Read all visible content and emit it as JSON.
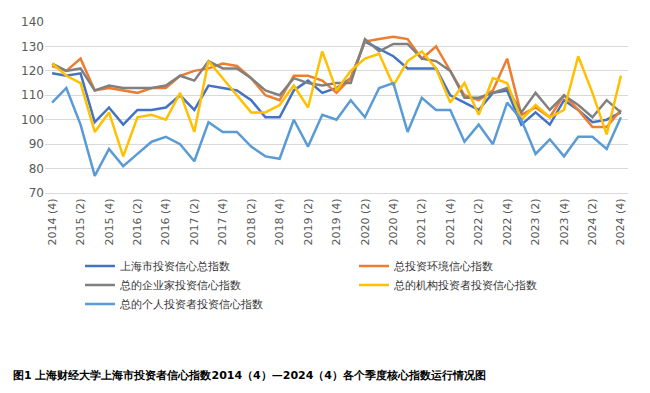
{
  "chart_data": {
    "type": "line",
    "title": "图1 上海财经大学上海市投资者信心指数2014（4）—2024（4）各个季度核心指数运行情况图",
    "categories": [
      "2014 (4)",
      null,
      "2015 (2)",
      null,
      "2015 (4)",
      null,
      "2016 (2)",
      null,
      "2016 (4)",
      null,
      "2017 (2)",
      null,
      "2017 (4)",
      null,
      "2018 (2)",
      null,
      "2018 (4)",
      null,
      "2019 (2)",
      null,
      "2019 (4)",
      null,
      "2020 (2)",
      null,
      "2020 (4)",
      null,
      "2021 (2)",
      null,
      "2021 (4)",
      null,
      "2022 (2)",
      null,
      "2022 (4)",
      null,
      "2023 (2)",
      null,
      "2023 (4)",
      null,
      "2024 (2)",
      null,
      "2024 (4)"
    ],
    "series": [
      {
        "name": "上海市投资信心总指数",
        "color": "#4472c4",
        "values": [
          119,
          118,
          119,
          99,
          105,
          98,
          104,
          104,
          105,
          110,
          104,
          114,
          113,
          112,
          108,
          101,
          101,
          112,
          116,
          111,
          113,
          117,
          132,
          129,
          126,
          121,
          121,
          121,
          110,
          107,
          104,
          111,
          112,
          98,
          103,
          98,
          108,
          104,
          99,
          100,
          103
        ]
      },
      {
        "name": "总投资环境信心指数",
        "color": "#ed7d31",
        "values": [
          122,
          120,
          125,
          112,
          113,
          112,
          111,
          113,
          113,
          118,
          120,
          121,
          123,
          122,
          117,
          110,
          108,
          118,
          118,
          116,
          111,
          117,
          132,
          133,
          134,
          133,
          125,
          130,
          120,
          110,
          108,
          112,
          125,
          102,
          105,
          101,
          110,
          104,
          97,
          97,
          104
        ]
      },
      {
        "name": "总的企业家投资信心指数",
        "color": "#808080",
        "values": [
          123,
          120,
          121,
          112,
          114,
          113,
          113,
          113,
          114,
          118,
          116,
          124,
          121,
          121,
          117,
          112,
          110,
          117,
          115,
          114,
          115,
          115,
          133,
          128,
          131,
          131,
          125,
          124,
          120,
          109,
          109,
          111,
          113,
          103,
          111,
          104,
          110,
          106,
          101,
          108,
          103
        ]
      },
      {
        "name": "总的机构投资者投资信心指数",
        "color": "#ffc000",
        "values": [
          123,
          118,
          115,
          95,
          103,
          85,
          101,
          102,
          100,
          111,
          95,
          124,
          117,
          110,
          103,
          103,
          106,
          114,
          105,
          128,
          112,
          120,
          125,
          127,
          114,
          124,
          128,
          121,
          107,
          115,
          102,
          117,
          115,
          100,
          106,
          101,
          104,
          126,
          111,
          94,
          118
        ]
      },
      {
        "name": "总的个人投资者投资信心指数",
        "color": "#5b9bd5",
        "values": [
          107,
          113,
          98,
          77,
          88,
          81,
          86,
          91,
          93,
          90,
          83,
          99,
          95,
          95,
          89,
          85,
          84,
          100,
          89,
          102,
          100,
          108,
          101,
          113,
          115,
          95,
          109,
          104,
          104,
          91,
          98,
          90,
          107,
          100,
          86,
          92,
          85,
          93,
          93,
          88,
          101
        ]
      }
    ],
    "ylim": [
      70,
      140
    ],
    "yticks": [
      70,
      80,
      90,
      100,
      110,
      120,
      130,
      140
    ],
    "grid": true,
    "legend": "bottom"
  }
}
